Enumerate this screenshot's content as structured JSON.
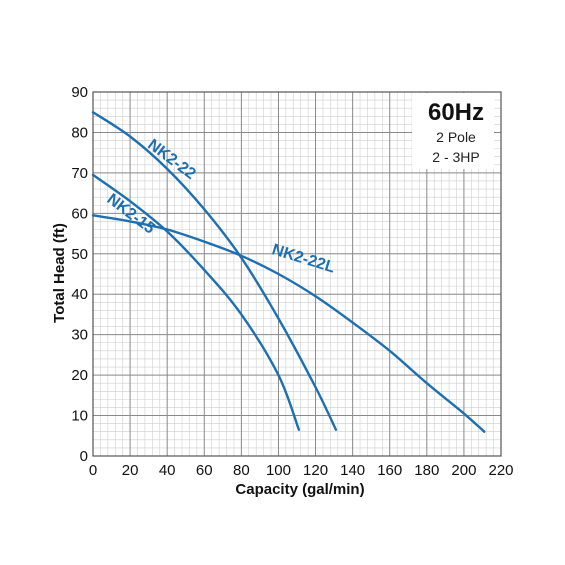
{
  "chart_data": {
    "type": "line",
    "xlabel": "Capacity (gal/min)",
    "ylabel": "Total Head (ft)",
    "xlim": [
      0,
      220
    ],
    "ylim": [
      0,
      90
    ],
    "x_ticks": [
      0,
      20,
      40,
      60,
      80,
      100,
      120,
      140,
      160,
      180,
      200,
      220
    ],
    "y_ticks": [
      0,
      10,
      20,
      30,
      40,
      50,
      60,
      70,
      80,
      90
    ],
    "grid": true,
    "info_box": {
      "title": "60Hz",
      "lines": [
        "2 Pole",
        "2 - 3HP"
      ]
    },
    "series": [
      {
        "name": "NK2-22",
        "color": "#1e6fb0",
        "x": [
          0,
          20,
          40,
          60,
          80,
          100,
          120,
          131
        ],
        "y": [
          85,
          79,
          71,
          61,
          49,
          34,
          17,
          6.5
        ]
      },
      {
        "name": "NK2-15",
        "color": "#1e6fb0",
        "x": [
          0,
          20,
          40,
          60,
          80,
          100,
          111
        ],
        "y": [
          69.5,
          63,
          55.5,
          46,
          35,
          20,
          6.5
        ]
      },
      {
        "name": "NK2-22L",
        "color": "#1e6fb0",
        "x": [
          0,
          20,
          40,
          60,
          80,
          100,
          120,
          140,
          160,
          180,
          200,
          211
        ],
        "y": [
          59.5,
          58,
          56,
          53,
          49.5,
          45,
          39.5,
          33,
          26,
          18,
          10.5,
          6
        ]
      }
    ]
  }
}
